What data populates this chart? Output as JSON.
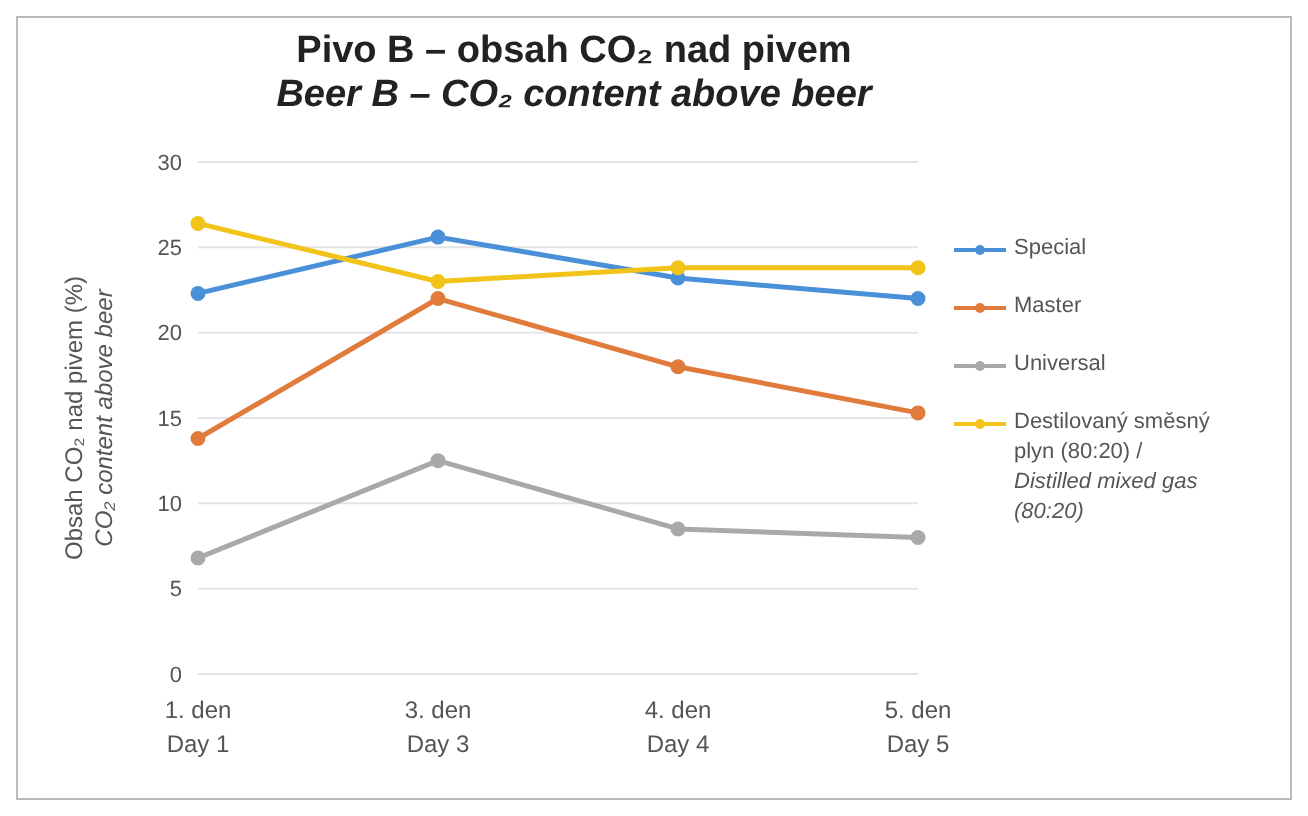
{
  "chart_data": {
    "type": "line",
    "title": "Pivo B – obsah CO₂ nad pivem",
    "subtitle": "Beer B – CO₂ content above beer",
    "ylabel": "Obsah CO₂ nad pivem (%)\nCO₂ content above beer",
    "categories": [
      "1. den\nDay 1",
      "3. den\nDay 3",
      "4. den\nDay 4",
      "5. den\nDay 5"
    ],
    "series": [
      {
        "name": "Special",
        "color": "#4a90d9",
        "values": [
          22.3,
          25.6,
          23.2,
          22
        ]
      },
      {
        "name": "Master",
        "color": "#e07b3c",
        "values": [
          13.8,
          22,
          18,
          15.3
        ]
      },
      {
        "name": "Universal",
        "color": "#a9a9a9",
        "values": [
          6.8,
          12.5,
          8.5,
          8
        ]
      },
      {
        "name": "Destilovaný směsný plyn (80:20) /\nDistilled mixed gas (80:20)",
        "color": "#f2c318",
        "values": [
          26.4,
          23,
          23.8,
          23.8
        ]
      }
    ],
    "ylim": [
      0,
      30
    ],
    "yticks": [
      0,
      5,
      10,
      15,
      20,
      25,
      30
    ],
    "grid": "y",
    "legend": "right",
    "marker": "circle",
    "line_style": "solid"
  }
}
